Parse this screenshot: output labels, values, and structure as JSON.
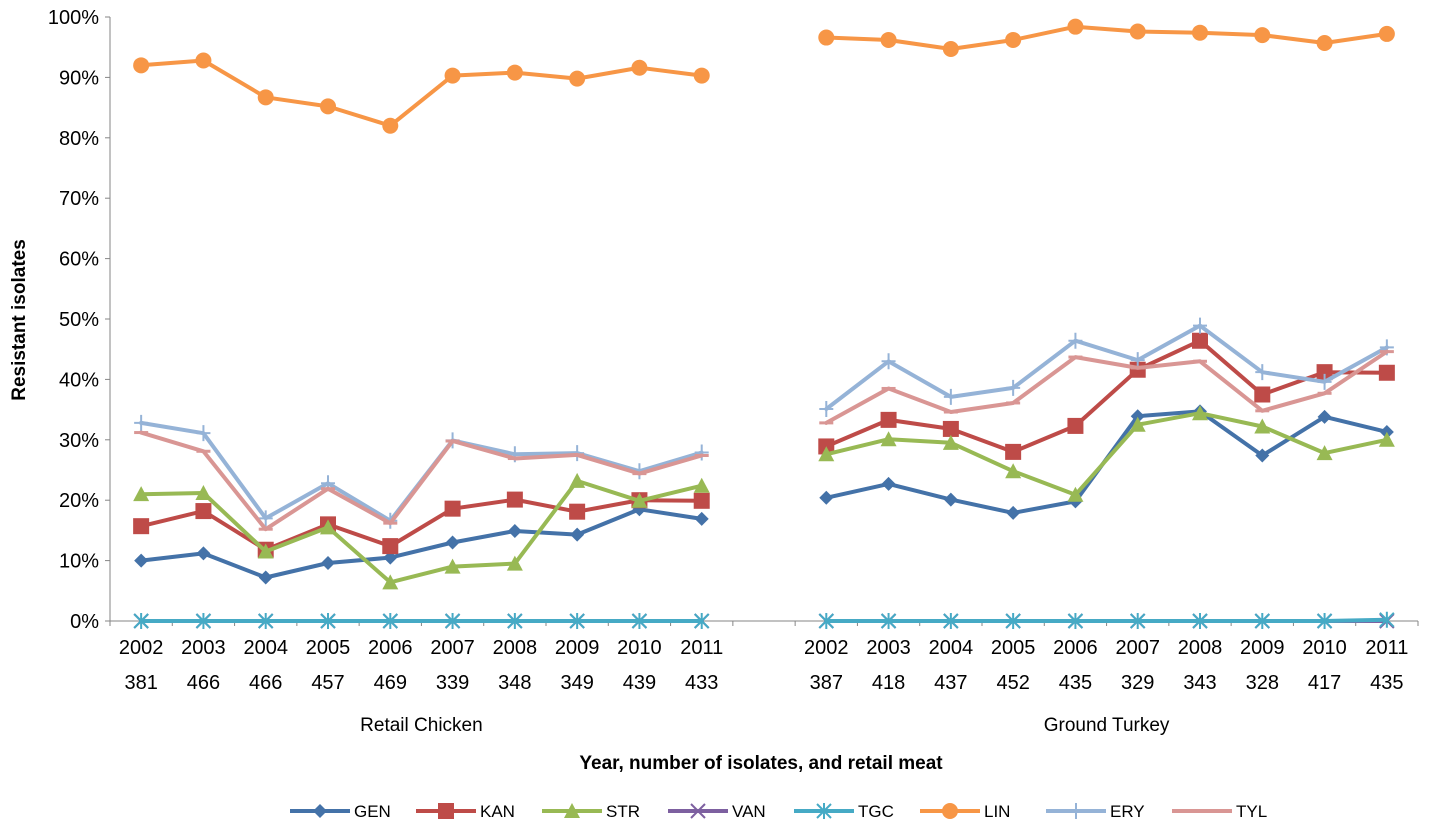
{
  "chart_data": {
    "type": "line",
    "title": "",
    "ylabel": "Resistant isolates",
    "xlabel": "Year, number of isolates, and retail meat",
    "ylim": [
      0,
      100
    ],
    "y_ticks": [
      "0%",
      "10%",
      "20%",
      "30%",
      "40%",
      "50%",
      "60%",
      "70%",
      "80%",
      "90%",
      "100%"
    ],
    "grid": false,
    "legend_position": "bottom",
    "groups": [
      {
        "name": "Retail Chicken",
        "years": [
          "2002",
          "2003",
          "2004",
          "2005",
          "2006",
          "2007",
          "2008",
          "2009",
          "2010",
          "2011"
        ],
        "counts": [
          "381",
          "466",
          "466",
          "457",
          "469",
          "339",
          "348",
          "349",
          "439",
          "433"
        ]
      },
      {
        "name": "Ground Turkey",
        "years": [
          "2002",
          "2003",
          "2004",
          "2005",
          "2006",
          "2007",
          "2008",
          "2009",
          "2010",
          "2011"
        ],
        "counts": [
          "387",
          "418",
          "437",
          "452",
          "435",
          "329",
          "343",
          "328",
          "417",
          "435"
        ]
      }
    ],
    "series": [
      {
        "name": "GEN",
        "color": "#4472A8",
        "marker": "diamond",
        "values": [
          [
            10.0,
            11.2,
            7.2,
            9.6,
            10.5,
            13.0,
            14.9,
            14.3,
            18.5,
            16.9
          ],
          [
            20.4,
            22.7,
            20.1,
            17.9,
            19.8,
            33.9,
            34.7,
            27.4,
            33.8,
            31.3
          ]
        ]
      },
      {
        "name": "KAN",
        "color": "#BE4B48",
        "marker": "square",
        "values": [
          [
            15.7,
            18.2,
            11.8,
            16.0,
            12.4,
            18.6,
            20.1,
            18.1,
            20.0,
            19.9
          ],
          [
            28.9,
            33.3,
            31.8,
            28.0,
            32.3,
            41.6,
            46.4,
            37.5,
            41.2,
            41.1
          ]
        ]
      },
      {
        "name": "STR",
        "color": "#98B954",
        "marker": "triangle",
        "values": [
          [
            21.0,
            21.2,
            11.5,
            15.5,
            6.4,
            9.0,
            9.5,
            23.2,
            19.9,
            22.4
          ],
          [
            27.6,
            30.1,
            29.5,
            24.8,
            20.9,
            32.5,
            34.4,
            32.2,
            27.8,
            30.0
          ]
        ]
      },
      {
        "name": "VAN",
        "color": "#7D60A0",
        "marker": "x",
        "values": [
          [
            0,
            0,
            0,
            0,
            0,
            0,
            0,
            0,
            0,
            0
          ],
          [
            0,
            0,
            0,
            0,
            0,
            0,
            0,
            0,
            0,
            0
          ]
        ]
      },
      {
        "name": "TGC",
        "color": "#46AAC5",
        "marker": "star",
        "values": [
          [
            0,
            0,
            0,
            0,
            0,
            0,
            0,
            0,
            0,
            0
          ],
          [
            0,
            0,
            0,
            0,
            0,
            0,
            0,
            0,
            0,
            0.2
          ]
        ]
      },
      {
        "name": "LIN",
        "color": "#F79646",
        "marker": "circle",
        "values": [
          [
            92.0,
            92.8,
            86.7,
            85.2,
            82.0,
            90.3,
            90.8,
            89.8,
            91.6,
            90.3
          ],
          [
            96.6,
            96.2,
            94.7,
            96.2,
            98.4,
            97.6,
            97.4,
            97.0,
            95.7,
            97.2
          ]
        ]
      },
      {
        "name": "ERY",
        "color": "#95B3D7",
        "marker": "plus",
        "values": [
          [
            32.8,
            31.1,
            17.0,
            22.8,
            16.6,
            29.9,
            27.6,
            27.8,
            24.8,
            27.9
          ],
          [
            35.1,
            43.0,
            37.1,
            38.6,
            46.4,
            43.2,
            48.9,
            41.2,
            39.6,
            45.3
          ]
        ]
      },
      {
        "name": "TYL",
        "color": "#D99694",
        "marker": "dash",
        "values": [
          [
            31.2,
            28.1,
            15.2,
            21.9,
            16.2,
            29.8,
            26.9,
            27.5,
            24.4,
            27.4
          ],
          [
            32.8,
            38.5,
            34.6,
            36.1,
            43.7,
            41.9,
            43.0,
            34.8,
            37.7,
            44.6
          ]
        ]
      }
    ]
  }
}
